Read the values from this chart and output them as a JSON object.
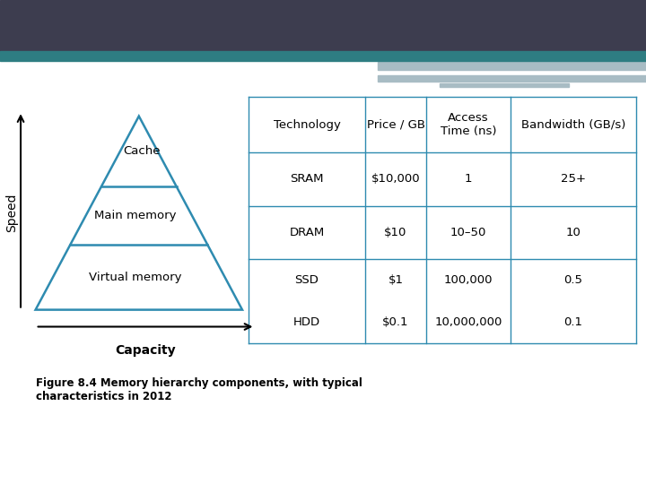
{
  "slide_bg": "#ffffff",
  "header_bar_color": "#3d3d4f",
  "header_bar2_color": "#2e7d82",
  "accent_bar_color": "#a8bcc4",
  "triangle_color": "#2e8bb0",
  "triangle_linewidth": 1.8,
  "speed_label": "Speed",
  "capacity_label": "Capacity",
  "table_headers": [
    "Technology",
    "Price / GB",
    "Access\nTime (ns)",
    "Bandwidth (GB/s)"
  ],
  "table_rows": [
    [
      "SRAM",
      "$10,000",
      "1",
      "25+"
    ],
    [
      "DRAM",
      "$10",
      "10–50",
      "10"
    ],
    [
      "SSD",
      "$1",
      "100,000",
      "0.5"
    ],
    [
      "HDD",
      "$0.1",
      "10,000,000",
      "0.1"
    ]
  ],
  "caption": "Figure 8.4 Memory hierarchy components, with typical\ncharacteristics in 2012",
  "caption_fontsize": 8.5,
  "table_fontsize": 9.5,
  "header_fontsize": 9.5,
  "label_fontsize": 9.5,
  "axis_label_fontsize": 10,
  "table_line_color": "#2e8bb0"
}
